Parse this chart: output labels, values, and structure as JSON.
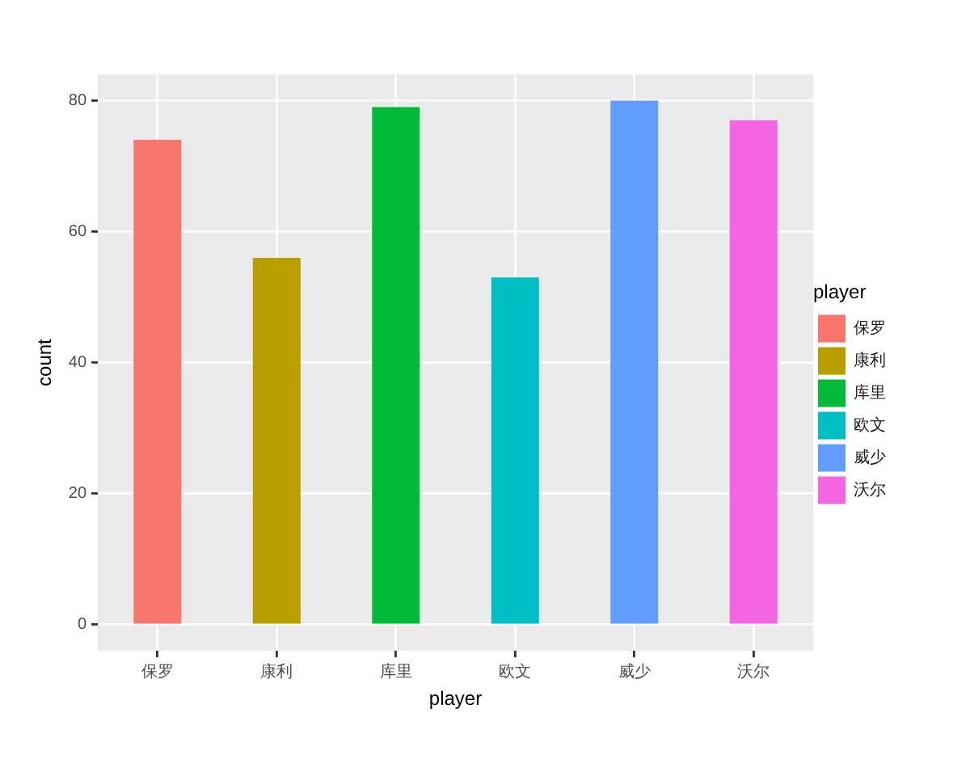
{
  "chart_data": {
    "type": "bar",
    "xlabel": "player",
    "ylabel": "count",
    "legend_title": "player",
    "categories": [
      "保罗",
      "康利",
      "库里",
      "欧文",
      "威少",
      "沃尔"
    ],
    "series": [
      {
        "name": "保罗",
        "color": "#f8766d",
        "values": [
          74,
          null,
          null,
          null,
          null,
          null
        ]
      },
      {
        "name": "康利",
        "color": "#b79f00",
        "values": [
          null,
          56,
          null,
          null,
          null,
          null
        ]
      },
      {
        "name": "库里",
        "color": "#00ba38",
        "values": [
          null,
          null,
          79,
          null,
          null,
          null
        ]
      },
      {
        "name": "欧文",
        "color": "#00bfc4",
        "values": [
          null,
          null,
          null,
          53,
          null,
          null
        ]
      },
      {
        "name": "威少",
        "color": "#619cff",
        "values": [
          null,
          null,
          null,
          null,
          80,
          null
        ]
      },
      {
        "name": "沃尔",
        "color": "#f564e3",
        "values": [
          null,
          null,
          null,
          null,
          null,
          77
        ]
      }
    ],
    "ylim": [
      -4,
      84
    ],
    "yticks": [
      0,
      20,
      40,
      60,
      80
    ],
    "grid": true,
    "legend": "right"
  }
}
